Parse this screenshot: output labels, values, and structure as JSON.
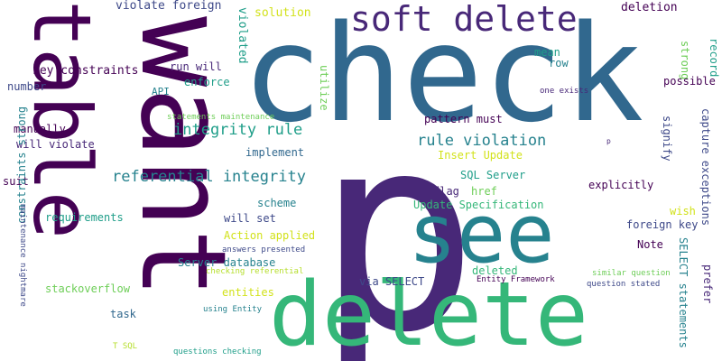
{
  "palette": {
    "purple_dark": "#440154",
    "purple": "#482878",
    "indigo": "#3e4989",
    "blue": "#31688e",
    "teal_blue": "#26828e",
    "teal": "#1f9e89",
    "green": "#35b779",
    "light_green": "#6ece58",
    "lime": "#b5de2b",
    "yellow": "#d2e21b"
  },
  "words": [
    {
      "text": "p",
      "color": "#482878"
    },
    {
      "text": "check",
      "color": "#31688e"
    },
    {
      "text": "want",
      "color": "#440154"
    },
    {
      "text": "delete",
      "color": "#35b779"
    },
    {
      "text": "table",
      "color": "#440154"
    },
    {
      "text": "see",
      "color": "#26828e"
    },
    {
      "text": "soft delete",
      "color": "#482878"
    },
    {
      "text": "referential integrity",
      "color": "#26828e"
    },
    {
      "text": "integrity rule",
      "color": "#1f9e89"
    },
    {
      "text": "rule violation",
      "color": "#26828e"
    },
    {
      "text": "violate foreign",
      "color": "#3e4989"
    },
    {
      "text": "key constraints",
      "color": "#440154"
    },
    {
      "text": "violated",
      "color": "#1f9e89"
    },
    {
      "text": "solution",
      "color": "#d2e21b"
    },
    {
      "text": "deletion",
      "color": "#440154"
    },
    {
      "text": "strong",
      "color": "#6ece58"
    },
    {
      "text": "record",
      "color": "#1f9e89"
    },
    {
      "text": "number",
      "color": "#3e4989"
    },
    {
      "text": "run will",
      "color": "#482878"
    },
    {
      "text": "enforce",
      "color": "#1f9e89"
    },
    {
      "text": "utilize",
      "color": "#6ece58"
    },
    {
      "text": "mean",
      "color": "#1f9e89"
    },
    {
      "text": "row",
      "color": "#26828e"
    },
    {
      "text": "possible",
      "color": "#440154"
    },
    {
      "text": "API",
      "color": "#26828e"
    },
    {
      "text": "one exists",
      "color": "#482878"
    },
    {
      "text": "statements maintenance",
      "color": "#6ece58"
    },
    {
      "text": "manually",
      "color": "#440154"
    },
    {
      "text": "will violate",
      "color": "#482878"
    },
    {
      "text": "implement",
      "color": "#31688e"
    },
    {
      "text": "pattern must",
      "color": "#440154"
    },
    {
      "text": "signify",
      "color": "#3e4989"
    },
    {
      "text": "capture exceptions",
      "color": "#3e4989"
    },
    {
      "text": "p",
      "color": "#482878"
    },
    {
      "text": "Insert Update",
      "color": "#d2e21b"
    },
    {
      "text": "SQL Server",
      "color": "#1f9e89"
    },
    {
      "text": "suit",
      "color": "#440154"
    },
    {
      "text": "flag",
      "color": "#482878"
    },
    {
      "text": "href",
      "color": "#6ece58"
    },
    {
      "text": "scheme",
      "color": "#26828e"
    },
    {
      "text": "explicitly",
      "color": "#440154"
    },
    {
      "text": "Update Specification",
      "color": "#35b779"
    },
    {
      "text": "wish",
      "color": "#d2e21b"
    },
    {
      "text": "constraints strong",
      "color": "#26828e"
    },
    {
      "text": "maintenance nightmare",
      "color": "#3e4989"
    },
    {
      "text": "requirements",
      "color": "#1f9e89"
    },
    {
      "text": "will set",
      "color": "#3e4989"
    },
    {
      "text": "foreign key",
      "color": "#3e4989"
    },
    {
      "text": "Action applied",
      "color": "#d2e21b"
    },
    {
      "text": "Note",
      "color": "#440154"
    },
    {
      "text": "answers presented",
      "color": "#3e4989"
    },
    {
      "text": "Server database",
      "color": "#26828e"
    },
    {
      "text": "deleted",
      "color": "#35b779"
    },
    {
      "text": "SELECT statements",
      "color": "#26828e"
    },
    {
      "text": "prefer",
      "color": "#482878"
    },
    {
      "text": "checking referential",
      "color": "#b5de2b"
    },
    {
      "text": "similar question",
      "color": "#6ece58"
    },
    {
      "text": "stackoverflow",
      "color": "#6ece58"
    },
    {
      "text": "entities",
      "color": "#d2e21b"
    },
    {
      "text": "via SELECT",
      "color": "#3e4989"
    },
    {
      "text": "Entity Framework",
      "color": "#440154"
    },
    {
      "text": "question stated",
      "color": "#3e4989"
    },
    {
      "text": "task",
      "color": "#31688e"
    },
    {
      "text": "using Entity",
      "color": "#26828e"
    },
    {
      "text": "T SQL",
      "color": "#b5de2b"
    },
    {
      "text": "questions checking",
      "color": "#1f9e89"
    }
  ]
}
